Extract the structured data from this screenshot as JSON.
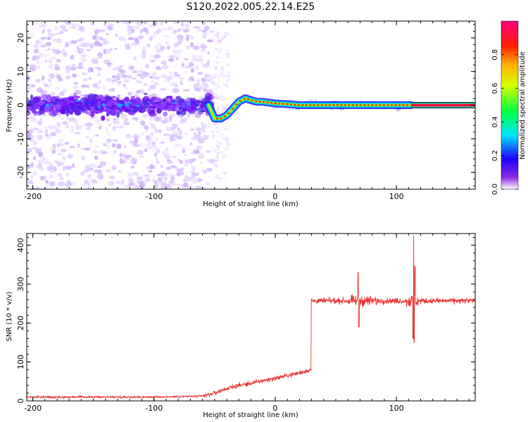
{
  "figure": {
    "title": "S120.2022.005.22.14.E25"
  },
  "chart_data": [
    {
      "type": "heatmap",
      "xlabel": "Height of straight line (km)",
      "ylabel": "Frequency (Hz)",
      "xlim": [
        -205,
        165
      ],
      "ylim": [
        -25,
        25
      ],
      "x_ticks": [
        -200,
        -100,
        0,
        100
      ],
      "y_ticks": [
        -20,
        -10,
        0,
        10,
        20
      ],
      "colorbar": {
        "label": "Normalized spectral amplitude",
        "range": [
          0,
          1
        ],
        "ticks": [
          0.0,
          0.2,
          0.4,
          0.6,
          0.8
        ],
        "colormap": [
          "#ffffff",
          "#7b00ff",
          "#0000ff",
          "#00ffff",
          "#00ff00",
          "#ffff00",
          "#ff0000",
          "#ff0080"
        ]
      },
      "trace": {
        "x": [
          -55,
          -50,
          -45,
          -40,
          -35,
          -30,
          -25,
          -20,
          -15,
          -10,
          0,
          10,
          20,
          40,
          60,
          80,
          100,
          110,
          112,
          165
        ],
        "y": [
          0,
          -4,
          -4,
          -3,
          -1,
          1,
          2,
          1.5,
          1,
          1,
          0.5,
          0.3,
          0,
          0,
          0,
          0,
          0,
          0,
          0,
          0
        ]
      },
      "noise_region": {
        "x": [
          -205,
          -52
        ],
        "center_band_hz": [
          -5,
          5
        ],
        "spread_hz": [
          -25,
          25
        ]
      },
      "narrow_line_region": {
        "x": [
          112,
          165
        ],
        "y": 0
      }
    },
    {
      "type": "line",
      "xlabel": "Height of straight line (km)",
      "ylabel": "SNR (10 * v/v)",
      "xlim": [
        -205,
        165
      ],
      "ylim": [
        0,
        430
      ],
      "x_ticks": [
        -200,
        -100,
        0,
        100
      ],
      "y_ticks": [
        0,
        100,
        200,
        300,
        400
      ],
      "series": [
        {
          "color": "#e8312d",
          "x": [
            -205,
            -150,
            -100,
            -60,
            -50,
            -40,
            -30,
            -20,
            -10,
            0,
            10,
            20,
            29,
            30,
            40,
            60,
            68,
            70,
            90,
            110,
            114,
            115,
            116,
            120,
            140,
            165
          ],
          "y": [
            10,
            10,
            10,
            12,
            20,
            32,
            40,
            45,
            52,
            58,
            65,
            72,
            80,
            260,
            258,
            255,
            320,
            250,
            255,
            260,
            150,
            430,
            250,
            255,
            250,
            250
          ]
        }
      ]
    }
  ]
}
